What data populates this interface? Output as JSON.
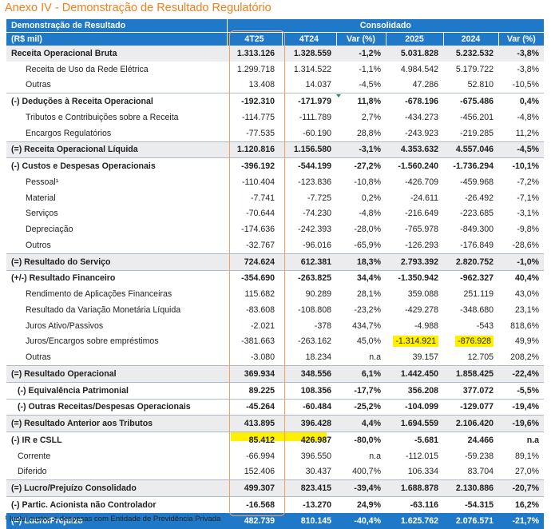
{
  "title": "Anexo IV - Demonstração de Resultado Regulatório",
  "header": {
    "label_line1": "Demonstração de Resultado",
    "label_line2": "(R$ mil)",
    "group": "Consolidado",
    "columns": [
      "4T25",
      "4T24",
      "Var (%)",
      "2025",
      "2024",
      "Var (%)"
    ]
  },
  "rows": [
    {
      "label": "Receita Operacional Bruta",
      "values": [
        "1.313.126",
        "1.328.559",
        "-1,2%",
        "5.031.828",
        "5.232.532",
        "-3,8%"
      ],
      "style": "bold shade"
    },
    {
      "label": "Receita de Uso da Rede Elétrica",
      "values": [
        "1.299.718",
        "1.314.522",
        "-1,1%",
        "4.984.542",
        "5.179.722",
        "-3,8%"
      ],
      "style": "sub"
    },
    {
      "label": "Outras",
      "values": [
        "13.408",
        "14.037",
        "-4,5%",
        "47.286",
        "52.810",
        "-10,5%"
      ],
      "style": "sub"
    },
    {
      "label": "(-) Deduções à Receita Operacional",
      "values": [
        "-192.310",
        "-171.979",
        "11,8%",
        "-678.196",
        "-675.486",
        "0,4%"
      ],
      "style": "bold sep"
    },
    {
      "label": "Tributos e Contribuições sobre a Receita",
      "values": [
        "-114.775",
        "-111.789",
        "2,7%",
        "-434.273",
        "-456.201",
        "-4,8%"
      ],
      "style": "sub"
    },
    {
      "label": "Encargos Regulatórios",
      "values": [
        "-77.535",
        "-60.190",
        "28,8%",
        "-243.923",
        "-219.285",
        "11,2%"
      ],
      "style": "sub"
    },
    {
      "label": "(=) Receita Operacional Líquida",
      "values": [
        "1.120.816",
        "1.156.580",
        "-3,1%",
        "4.353.632",
        "4.557.046",
        "-4,5%"
      ],
      "style": "bold shade sep"
    },
    {
      "label": "(-) Custos e Despesas Operacionais",
      "values": [
        "-396.192",
        "-544.199",
        "-27,2%",
        "-1.560.240",
        "-1.736.294",
        "-10,1%"
      ],
      "style": "bold sep"
    },
    {
      "label": "Pessoal¹",
      "values": [
        "-110.404",
        "-123.836",
        "-10,8%",
        "-426.709",
        "-459.968",
        "-7,2%"
      ],
      "style": "sub"
    },
    {
      "label": "Material",
      "values": [
        "-7.741",
        "-7.725",
        "0,2%",
        "-24.611",
        "-26.492",
        "-7,1%"
      ],
      "style": "sub"
    },
    {
      "label": "Serviços",
      "values": [
        "-70.644",
        "-74.230",
        "-4,8%",
        "-216.649",
        "-223.685",
        "-3,1%"
      ],
      "style": "sub"
    },
    {
      "label": "Depreciação",
      "values": [
        "-174.636",
        "-242.393",
        "-28,0%",
        "-765.978",
        "-849.300",
        "-9,8%"
      ],
      "style": "sub"
    },
    {
      "label": "Outros",
      "values": [
        "-32.767",
        "-96.016",
        "-65,9%",
        "-126.293",
        "-176.849",
        "-28,6%"
      ],
      "style": "sub"
    },
    {
      "label": "(=) Resultado do Serviço",
      "values": [
        "724.624",
        "612.381",
        "18,3%",
        "2.793.392",
        "2.820.752",
        "-1,0%"
      ],
      "style": "bold shade sep"
    },
    {
      "label": "(+/-) Resultado Financeiro",
      "values": [
        "-354.690",
        "-263.825",
        "34,4%",
        "-1.350.942",
        "-962.327",
        "40,4%"
      ],
      "style": "bold sep"
    },
    {
      "label": "Rendimento de Aplicações Financeiras",
      "values": [
        "115.682",
        "90.289",
        "28,1%",
        "359.088",
        "251.119",
        "43,0%"
      ],
      "style": "sub"
    },
    {
      "label": "Resultado da Variação Monetária Líquida",
      "values": [
        "-83.608",
        "-108.808",
        "-23,2%",
        "-429.278",
        "-348.680",
        "23,1%"
      ],
      "style": "sub"
    },
    {
      "label": "Juros Ativo/Passivos",
      "values": [
        "-2.021",
        "-378",
        "434,7%",
        "-4.988",
        "-543",
        "818,6%"
      ],
      "style": "sub"
    },
    {
      "label": "Juros/Encargos sobre empréstimos",
      "values": [
        "-381.663",
        "-263.162",
        "45,0%",
        "-1.314.921",
        "-876.928",
        "49,9%"
      ],
      "style": "sub",
      "highlight": [
        3,
        4
      ]
    },
    {
      "label": "Outras",
      "values": [
        "-3.080",
        "18.234",
        "n.a",
        "39.157",
        "12.705",
        "208,2%"
      ],
      "style": "sub"
    },
    {
      "label": "(=) Resultado Operacional",
      "values": [
        "369.934",
        "348.556",
        "6,1%",
        "1.442.450",
        "1.858.425",
        "-22,4%"
      ],
      "style": "bold shade sep"
    },
    {
      "label": "(-) Equivalência Patrimonial",
      "values": [
        "89.225",
        "108.356",
        "-17,7%",
        "356.208",
        "377.072",
        "-5,5%"
      ],
      "style": "bold ind sep"
    },
    {
      "label": "(-) Outras Receitas/Despesas Operacionais",
      "values": [
        "-45.264",
        "-60.484",
        "-25,2%",
        "-104.099",
        "-129.077",
        "-19,4%"
      ],
      "style": "bold ind sep"
    },
    {
      "label": "(=) Resultado Anterior aos Tributos",
      "values": [
        "413.895",
        "396.428",
        "4,4%",
        "1.694.559",
        "2.106.420",
        "-19,6%"
      ],
      "style": "bold shade sep"
    },
    {
      "label": "(-) IR e CSLL",
      "values": [
        "85.412",
        "426.987",
        "-80,0%",
        "-5.681",
        "24.466",
        "n.a"
      ],
      "style": "bold sep"
    },
    {
      "label": "Corrente",
      "values": [
        "-66.994",
        "396.550",
        "n.a",
        "-112.015",
        "-59.238",
        "89,1%"
      ],
      "style": "ind"
    },
    {
      "label": "Diferido",
      "values": [
        "152.406",
        "30.437",
        "400,7%",
        "106.334",
        "83.704",
        "27,0%"
      ],
      "style": "ind"
    },
    {
      "label": "(=) Lucro/Prejuízo Consolidado",
      "values": [
        "499.307",
        "823.415",
        "-39,4%",
        "1.688.878",
        "2.130.886",
        "-20,7%"
      ],
      "style": "bold shade sep"
    },
    {
      "label": "(-) Partic. Acionista não Controlador",
      "values": [
        "-16.568",
        "-13.270",
        "24,9%",
        "-63.116",
        "-54.315",
        "16,2%"
      ],
      "style": "bold sep"
    },
    {
      "label": "(=) Lucro/Prejuízo",
      "values": [
        "482.739",
        "810.145",
        "-40,4%",
        "1.625.762",
        "2.076.571",
        "-21,7%"
      ],
      "style": "bold final"
    }
  ],
  "footnote": "¹ Inclui custos e despesas com Entidade de Previdência Privada",
  "colors": {
    "header_blue": "#1f78c8",
    "title_orange": "#f07f1b",
    "highlight": "#fff000",
    "shade": "#ececee",
    "box": "#f0a060"
  }
}
